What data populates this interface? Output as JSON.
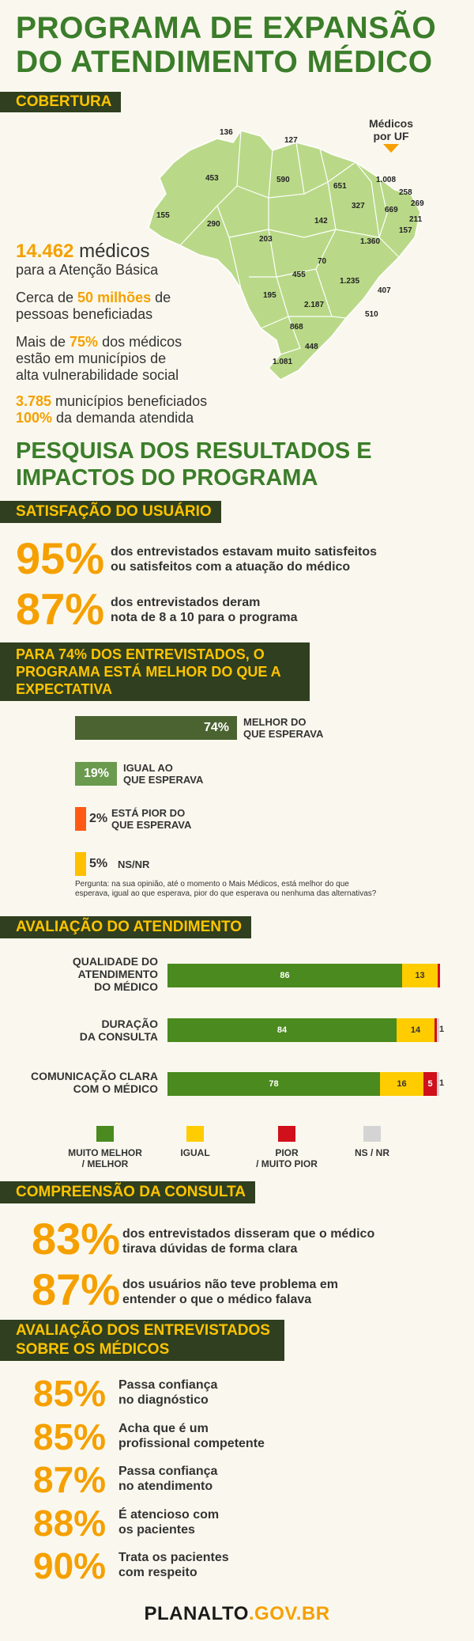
{
  "title": [
    "PROGRAMA DE EXPANSÃO",
    "DO ATENDIMENTO MÉDICO"
  ],
  "cobertura": {
    "banner": "COBERTURA",
    "map_legend": [
      "Médicos",
      "por UF"
    ],
    "map_values": [
      "136",
      "127",
      "453",
      "590",
      "651",
      "1.008",
      "258",
      "269",
      "669",
      "211",
      "157",
      "327",
      "155",
      "290",
      "142",
      "203",
      "1.360",
      "70",
      "455",
      "1.235",
      "407",
      "195",
      "2.187",
      "510",
      "868",
      "448",
      "1.081"
    ],
    "stats": {
      "medicos_num": "14.462",
      "medicos_word": " médicos",
      "medicos_sub": "para a Atenção Básica",
      "pessoas_pre": "Cerca de ",
      "pessoas_num": "50 milhões",
      "pessoas_post": " de",
      "pessoas_line2": "pessoas beneficiadas",
      "mais_pre": "Mais de ",
      "mais_num": "75%",
      "mais_post": " dos médicos",
      "mais_line2": "estão em municípios de",
      "mais_line3": "alta vulnerabilidade social",
      "mun_num": "3.785",
      "mun_text": " municípios beneficiados",
      "dem_num": "100%",
      "dem_text": " da demanda atendida"
    }
  },
  "pesquisa_title": [
    "PESQUISA DOS RESULTADOS E",
    "IMPACTOS DO PROGRAMA"
  ],
  "satisfacao": {
    "banner": "SATISFAÇÃO DO USUÁRIO",
    "items": [
      {
        "pct": "95%",
        "line1": "dos entrevistados estavam muito satisfeitos",
        "line2": "ou satisfeitos com a atuação do médico"
      },
      {
        "pct": "87%",
        "line1": "dos entrevistados deram",
        "line2": "nota de 8 a 10 para o programa"
      }
    ]
  },
  "expectativa": {
    "banner": [
      "PARA 74% DOS ENTREVISTADOS, O",
      "PROGRAMA ESTÁ MELHOR DO QUE A",
      "EXPECTATIVA"
    ],
    "bars": [
      {
        "pct": "74%",
        "value": 74,
        "line1": "MELHOR DO",
        "line2": "QUE ESPERAVA",
        "color": "#4a6330"
      },
      {
        "pct": "19%",
        "value": 19,
        "line1": "IGUAL AO",
        "line2": "QUE ESPERAVA",
        "color": "#6a9a4e"
      },
      {
        "pct": "2%",
        "value": 2,
        "line1": "ESTÁ PIOR DO",
        "line2": "QUE ESPERAVA",
        "color": "#ff5a14"
      },
      {
        "pct": "5%",
        "value": 5,
        "line1": "NS/NR",
        "line2": "",
        "color": "#ffc000"
      }
    ],
    "question": [
      "Pergunta: na sua opinião, até o momento o Mais Médicos, está melhor do que",
      "esperava, igual ao que esperava, pior do que esperava ou nenhuma das alternativas?"
    ]
  },
  "avaliacao": {
    "banner": "AVALIAÇÃO DO ATENDIMENTO",
    "rows": [
      {
        "label": [
          "QUALIDADE DO",
          "ATENDIMENTO",
          "DO MÉDICO"
        ],
        "values": [
          86,
          13,
          1,
          0
        ],
        "labels": [
          "86",
          "13",
          "",
          ""
        ]
      },
      {
        "label": [
          "DURAÇÃO",
          "DA CONSULTA"
        ],
        "values": [
          84,
          14,
          1,
          1
        ],
        "labels": [
          "84",
          "14",
          "",
          "1"
        ]
      },
      {
        "label": [
          "COMUNICAÇÃO CLARA",
          "COM O MÉDICO"
        ],
        "values": [
          78,
          16,
          5,
          1
        ],
        "labels": [
          "78",
          "16",
          "5",
          "1"
        ]
      }
    ],
    "colors": [
      "#4a8a1e",
      "#ffcc00",
      "#d0101a",
      "#d4d4d4"
    ],
    "legend": [
      {
        "line1": "MUITO MELHOR",
        "line2": "/ MELHOR"
      },
      {
        "line1": "IGUAL",
        "line2": ""
      },
      {
        "line1": "PIOR",
        "line2": "/ MUITO PIOR"
      },
      {
        "line1": "NS / NR",
        "line2": ""
      }
    ]
  },
  "compreensao": {
    "banner": "COMPREENSÃO DA CONSULTA",
    "items": [
      {
        "pct": "83%",
        "line1": "dos entrevistados disseram que o médico",
        "line2": "tirava dúvidas de forma clara"
      },
      {
        "pct": "87%",
        "line1": "dos usuários não teve problema em",
        "line2": "entender o que o médico falava"
      }
    ]
  },
  "avaliacao_medicos": {
    "banner": [
      "AVALIAÇÃO DOS ENTREVISTADOS",
      "SOBRE OS MÉDICOS"
    ],
    "items": [
      {
        "pct": "85%",
        "line1": "Passa confiança",
        "line2": "no diagnóstico"
      },
      {
        "pct": "85%",
        "line1": "Acha que é um",
        "line2": "profissional competente"
      },
      {
        "pct": "87%",
        "line1": "Passa confiança",
        "line2": "no atendimento"
      },
      {
        "pct": "88%",
        "line1": "É atencioso com",
        "line2": "os pacientes"
      },
      {
        "pct": "90%",
        "line1": "Trata os pacientes",
        "line2": "com respeito"
      }
    ]
  },
  "footer": {
    "brand": "PLANALTO",
    "domain": ".GOV.BR"
  }
}
